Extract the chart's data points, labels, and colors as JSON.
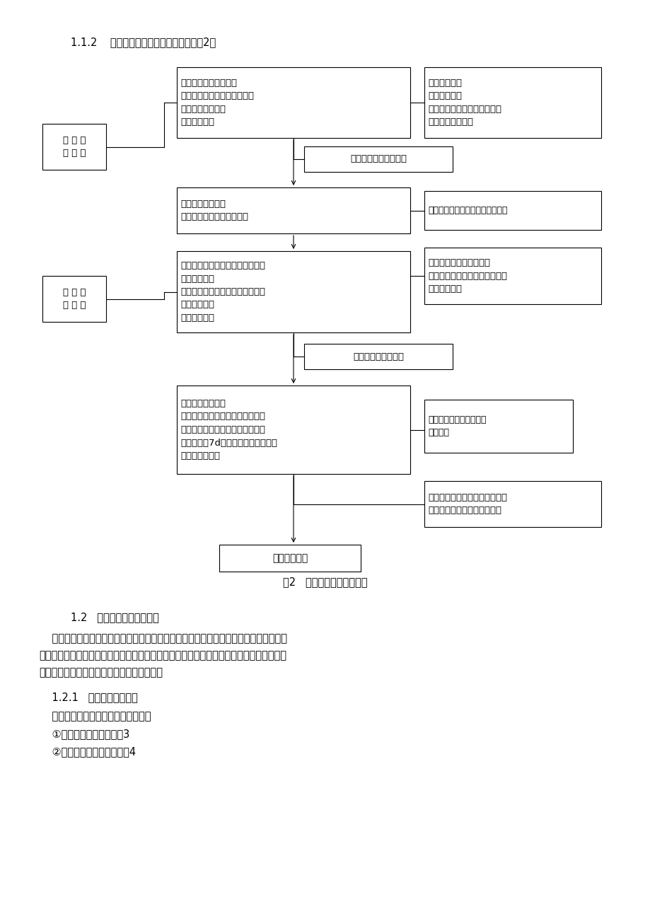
{
  "bg": "#ffffff",
  "title": "1.1.2    路基路面工程监理工作流程，见图2。",
  "caption": "图2   路基路面监理工作流程",
  "flowchart": {
    "box1": {
      "text": "审核路基施工工艺流程\n检查承包人机具设备、试验设\n备及自检体系情况\n复核施工放样"
    },
    "box_r1": {
      "text": "熟悉工程内容\n编写监理规划\n了解业主移交土地使用权情况\n准备召开工地会议"
    },
    "box_lbl1": {
      "text": "路 基 施\n工 阶 段"
    },
    "box_ap1": {
      "text": "批准或不批准开工报告"
    },
    "box2": {
      "text": "监理试验路段施工\n检测路基几何尺寸及压实度"
    },
    "box_r2": {
      "text": "（施工阶段监理详见各分项工程）"
    },
    "box3": {
      "text": "审核路面施工工艺流程及各结构物\n混合料配合比\n检查承包人机具设备、试验设备及\n自检体系情况\n复核施工放样"
    },
    "box_r3": {
      "text": "检验合格签署工序报验单\n并填写各项工程质量检验评定表\n进入路面施工"
    },
    "box_lbl2": {
      "text": "路 面 施\n工 阶 段"
    },
    "box_ap2": {
      "text": "批准不批准开工报告"
    },
    "box4": {
      "text": "路槽或下乘层检查\n监理旁站、监督试验段施工，现场\n检查混合料成分及沥青含量并进行\n强度试验（7d无侧限），检测各项几\n何指标及压实度"
    },
    "box_r4": {
      "text": "（施工阶段监理详见各分\n项工程）"
    },
    "box_r5": {
      "text": "逐层逐段检验签署工序报检，并\n填写分项工程质量检验评定表"
    },
    "box_fin": {
      "text": "工程竣工验收"
    }
  },
  "sec_head": "1.2   公路路线放样质量控制",
  "para": "    公路路线放样是按设计图纸，在施工承包合同正式生效后进行。路线放样前施工承包人\n应全面熟悉设计文件，接受监理工程师或设计单位交给的导线桩、水准点设计的逐桩坐标资\n料以及其他标志，并按要求进行复核和放样。",
  "sub1": "    1.2.1   路线放样质量控制",
  "sub2": "    （一）导线桩、水准点交换工作流程",
  "item1": "    ①监理工程师交桩，见图3",
  "item2": "    ②设计单位直接交桩，见图4"
}
